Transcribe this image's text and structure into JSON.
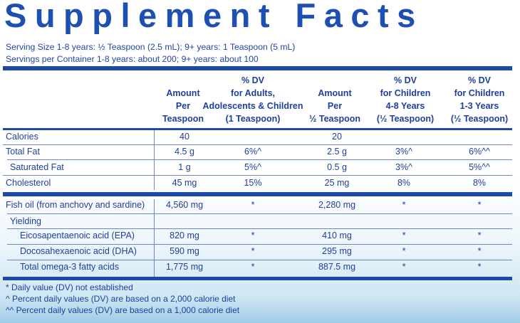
{
  "title": "Supplement Facts",
  "serving_size": "Serving Size 1-8 years: ½ Teaspoon (2.5 mL); 9+ years: 1 Teaspoon (5 mL)",
  "servings_per_container": "Servings per Container 1-8 years: about 200; 9+ years: about 100",
  "headers": {
    "col1": [
      "Amount",
      "Per",
      "Teaspoon"
    ],
    "col2": [
      "% DV",
      "for Adults,",
      "Adolescents & Children",
      "(1 Teaspoon)"
    ],
    "col3": [
      "Amount",
      "Per",
      "½ Teaspoon"
    ],
    "col4": [
      "% DV",
      "for Children",
      "4-8 Years",
      "(½ Teaspoon)"
    ],
    "col5": [
      "% DV",
      "for Children",
      "1-3 Years",
      "(½ Teaspoon)"
    ]
  },
  "rows": [
    {
      "label": "Calories",
      "c1": "40",
      "c2": "",
      "c3": "20",
      "c4": "",
      "c5": ""
    },
    {
      "label": "Total Fat",
      "c1": "4.5 g",
      "c2": "6%^",
      "c3": "2.5 g",
      "c4": "3%^",
      "c5": "6%^^"
    },
    {
      "label": "Saturated Fat",
      "c1": "1 g",
      "c2": "5%^",
      "c3": "0.5 g",
      "c4": "3%^",
      "c5": "5%^^"
    },
    {
      "label": "Cholesterol",
      "c1": "45 mg",
      "c2": "15%",
      "c3": "25 mg",
      "c4": "8%",
      "c5": "8%"
    },
    {
      "label": "Fish oil (from anchovy and sardine)",
      "c1": "4,560 mg",
      "c2": "*",
      "c3": "2,280 mg",
      "c4": "*",
      "c5": "*"
    },
    {
      "label": "Yielding",
      "c1": "",
      "c2": "",
      "c3": "",
      "c4": "",
      "c5": ""
    },
    {
      "label": "Eicosapentaenoic acid (EPA)",
      "c1": "820 mg",
      "c2": "*",
      "c3": "410 mg",
      "c4": "*",
      "c5": "*"
    },
    {
      "label": "Docosahexaenoic acid (DHA)",
      "c1": "590 mg",
      "c2": "*",
      "c3": "295 mg",
      "c4": "*",
      "c5": "*"
    },
    {
      "label": "Total omega-3 fatty acids",
      "c1": "1,775 mg",
      "c2": "*",
      "c3": "887.5 mg",
      "c4": "*",
      "c5": "*"
    }
  ],
  "footnotes": [
    "* Daily value (DV) not established",
    "^ Percent daily values (DV) are based on a 2,000 calorie diet",
    "^^ Percent daily values (DV) are based on a 1,000 calorie diet"
  ],
  "colors": {
    "brand_blue": "#1e50b3",
    "rule_blue": "#1c49a9"
  }
}
